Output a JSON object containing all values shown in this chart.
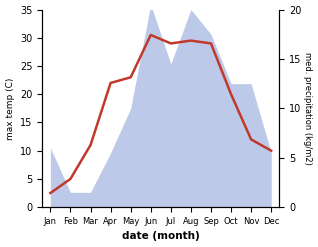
{
  "months": [
    "Jan",
    "Feb",
    "Mar",
    "Apr",
    "May",
    "Jun",
    "Jul",
    "Aug",
    "Sep",
    "Oct",
    "Nov",
    "Dec"
  ],
  "temperature": [
    2.5,
    5.0,
    11.0,
    22.0,
    23.0,
    30.5,
    29.0,
    29.5,
    29.0,
    20.0,
    12.0,
    10.0
  ],
  "precipitation_kg": [
    6.0,
    1.5,
    1.5,
    5.5,
    10.0,
    20.5,
    14.5,
    20.0,
    17.5,
    12.5,
    12.5,
    5.5
  ],
  "temp_color": "#c0392b",
  "precip_color": "#bdc9e8",
  "temp_ylim": [
    0,
    35
  ],
  "precip_ylim_kg": [
    0,
    20
  ],
  "ylabel_left": "max temp (C)",
  "ylabel_right": "med. precipitation (kg/m2)",
  "xlabel": "date (month)",
  "right_yticks": [
    0,
    5,
    10,
    15,
    20
  ],
  "left_yticks": [
    0,
    5,
    10,
    15,
    20,
    25,
    30,
    35
  ],
  "scale_factor": 1.75,
  "background_color": "#ffffff"
}
